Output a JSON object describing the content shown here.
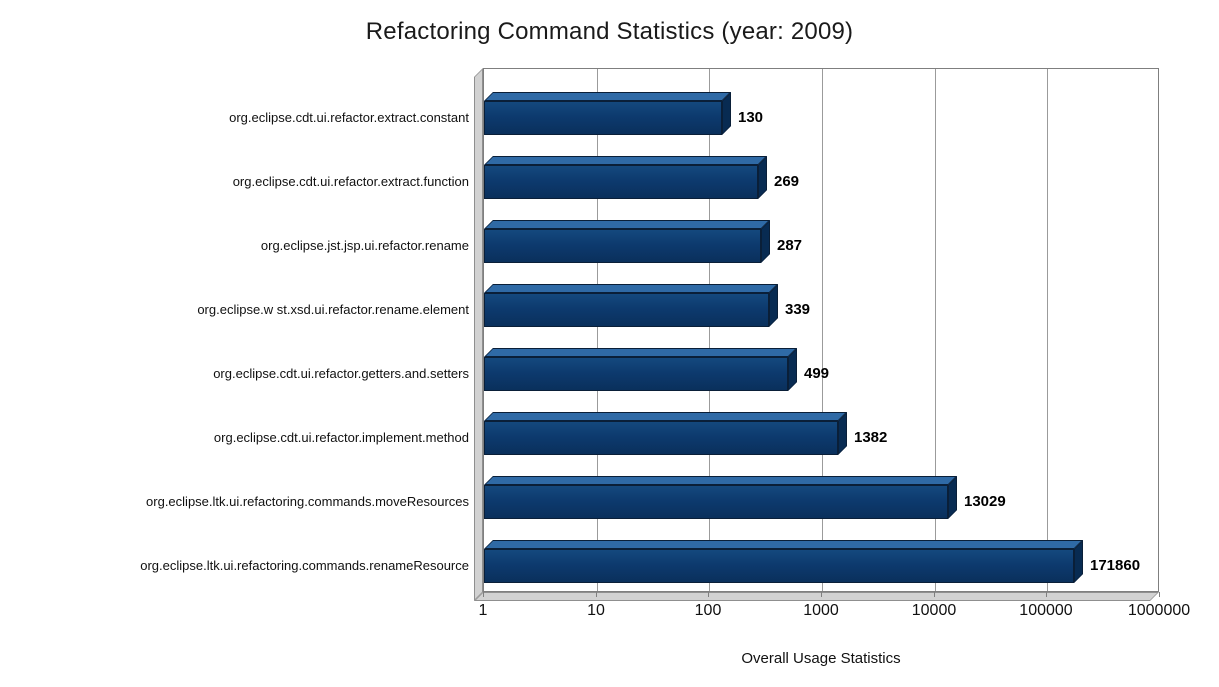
{
  "chart_data": {
    "type": "bar",
    "orientation": "horizontal",
    "x_scale": "log",
    "title": "Refactoring Command Statistics (year: 2009)",
    "xlabel": "Overall Usage Statistics",
    "ylabel": "",
    "grid": true,
    "xlim": [
      1,
      1000000
    ],
    "x_ticks": [
      "1",
      "10",
      "100",
      "1000",
      "10000",
      "100000",
      "1000000"
    ],
    "categories": [
      "org.eclipse.cdt.ui.refactor.extract.constant",
      "org.eclipse.cdt.ui.refactor.extract.function",
      "org.eclipse.jst.jsp.ui.refactor.rename",
      "org.eclipse.w st.xsd.ui.refactor.rename.element",
      "org.eclipse.cdt.ui.refactor.getters.and.setters",
      "org.eclipse.cdt.ui.refactor.implement.method",
      "org.eclipse.ltk.ui.refactoring.commands.moveResources",
      "org.eclipse.ltk.ui.refactoring.commands.renameResource"
    ],
    "values": [
      130,
      269,
      287,
      339,
      499,
      1382,
      13029,
      171860
    ],
    "value_labels": [
      "130",
      "269",
      "287",
      "339",
      "499",
      "1382",
      "13029",
      "171860"
    ],
    "colors": {
      "bar_front": "#0d3a6e",
      "bar_top": "#2f6aa6",
      "bar_end": "#082b52",
      "bar_outline": "#0a1f38",
      "wall": "#d2d2d2",
      "gridline": "#9b9b9b",
      "plot_border": "#7f7f7f",
      "text": "#111111"
    }
  }
}
